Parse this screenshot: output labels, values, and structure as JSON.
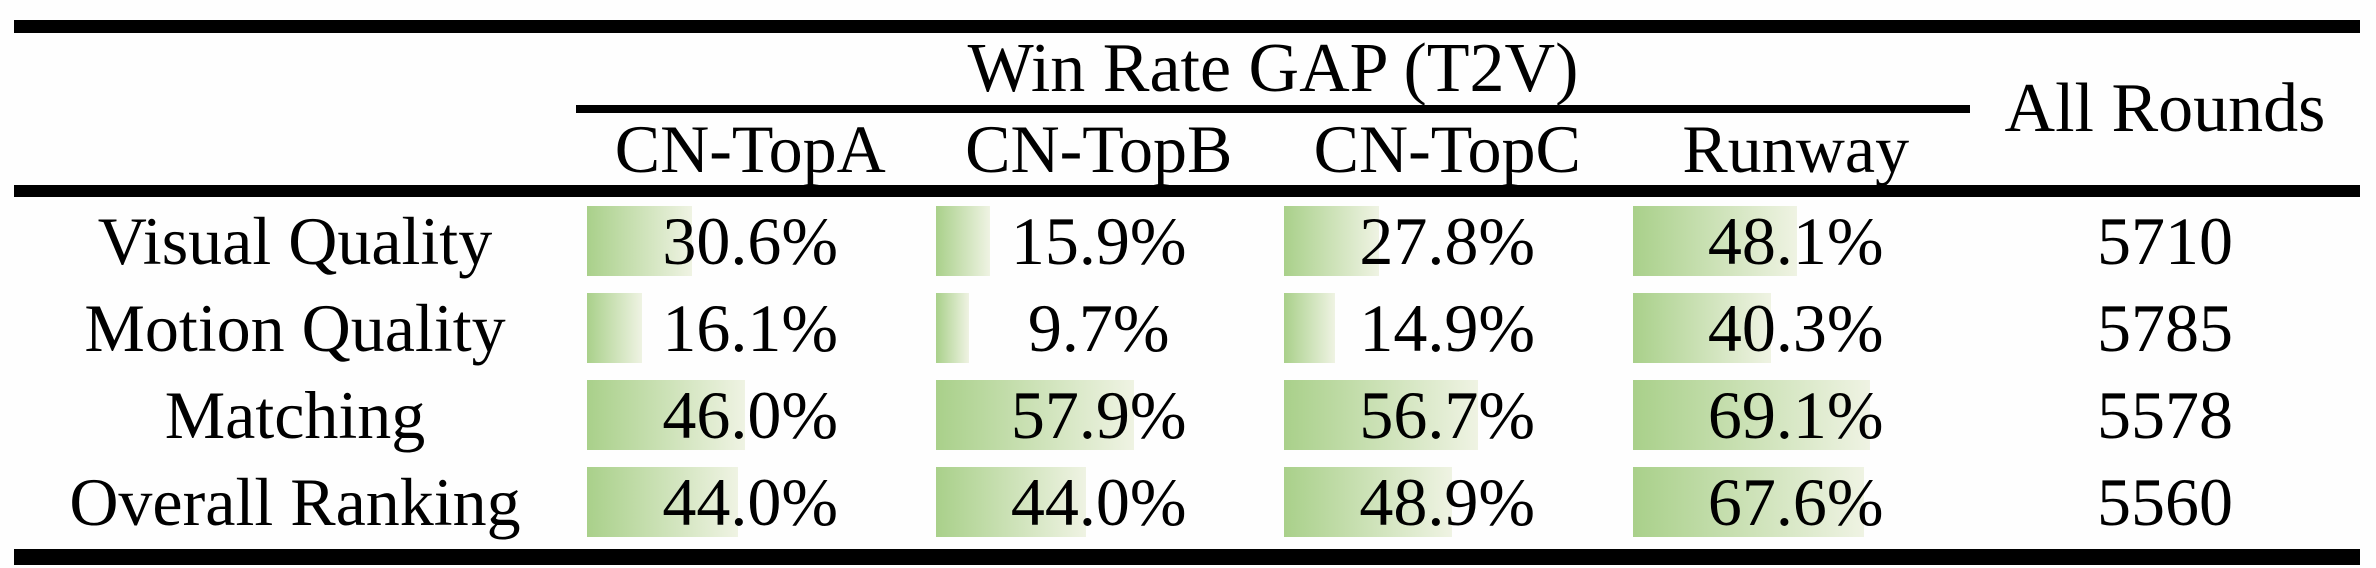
{
  "table": {
    "group_header": "Win Rate GAP (T2V)",
    "all_rounds_header": "All Rounds",
    "model_headers": [
      "CN-TopA",
      "CN-TopB",
      "CN-TopC",
      "Runway"
    ],
    "rows": [
      {
        "label": "Visual Quality",
        "cells": [
          {
            "text": "30.6%",
            "value": 30.6
          },
          {
            "text": "15.9%",
            "value": 15.9
          },
          {
            "text": "27.8%",
            "value": 27.8
          },
          {
            "text": "48.1%",
            "value": 48.1
          }
        ],
        "all_rounds": "5710"
      },
      {
        "label": "Motion Quality",
        "cells": [
          {
            "text": "16.1%",
            "value": 16.1
          },
          {
            "text": "9.7%",
            "value": 9.7
          },
          {
            "text": "14.9%",
            "value": 14.9
          },
          {
            "text": "40.3%",
            "value": 40.3
          }
        ],
        "all_rounds": "5785"
      },
      {
        "label": "Matching",
        "cells": [
          {
            "text": "46.0%",
            "value": 46.0
          },
          {
            "text": "57.9%",
            "value": 57.9
          },
          {
            "text": "56.7%",
            "value": 56.7
          },
          {
            "text": "69.1%",
            "value": 69.1
          }
        ],
        "all_rounds": "5578"
      },
      {
        "label": "Overall Ranking",
        "cells": [
          {
            "text": "44.0%",
            "value": 44.0
          },
          {
            "text": "44.0%",
            "value": 44.0
          },
          {
            "text": "48.9%",
            "value": 48.9
          },
          {
            "text": "67.6%",
            "value": 67.6
          }
        ],
        "all_rounds": "5560"
      }
    ],
    "colors": {
      "bar_gradient_start": "#a9d08a",
      "bar_gradient_end": "#eff3e3",
      "rule": "#000000",
      "text": "#000000"
    }
  },
  "chart_data": {
    "type": "table",
    "title": "Win Rate GAP (T2V)",
    "columns": [
      "",
      "CN-TopA",
      "CN-TopB",
      "CN-TopC",
      "Runway",
      "All Rounds"
    ],
    "categories": [
      "Visual Quality",
      "Motion Quality",
      "Matching",
      "Overall Ranking"
    ],
    "series": [
      {
        "name": "CN-TopA",
        "values": [
          30.6,
          16.1,
          46.0,
          44.0
        ]
      },
      {
        "name": "CN-TopB",
        "values": [
          15.9,
          9.7,
          57.9,
          44.0
        ]
      },
      {
        "name": "CN-TopC",
        "values": [
          27.8,
          14.9,
          56.7,
          48.9
        ]
      },
      {
        "name": "Runway",
        "values": [
          48.1,
          40.3,
          69.1,
          67.6
        ]
      }
    ],
    "all_rounds": [
      5710,
      5785,
      5578,
      5560
    ],
    "value_unit": "%",
    "bar_scale": "bar width equals percentage of column width",
    "layout": "data bars rendered behind cell values, left-aligned in cell"
  }
}
